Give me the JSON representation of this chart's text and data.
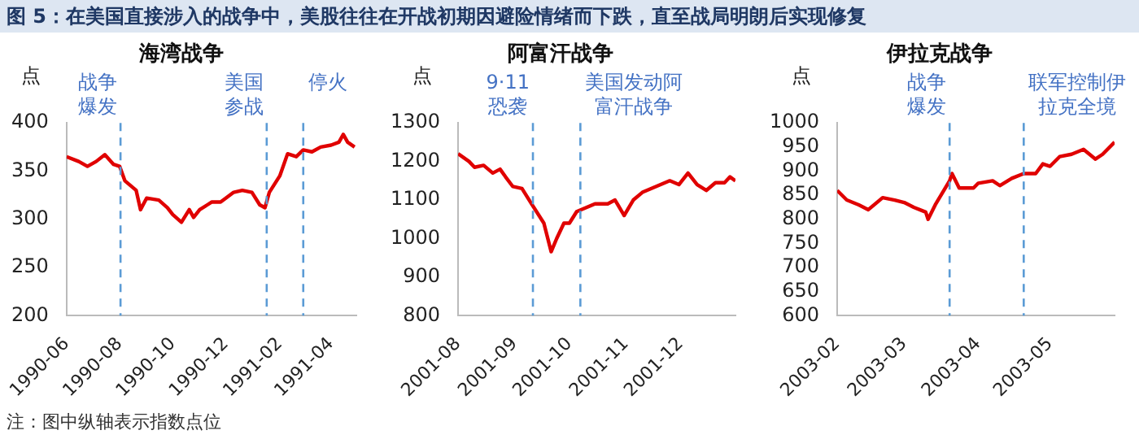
{
  "chart_data": [
    {
      "type": "line",
      "subtitle": "图 5：在美国直接涉入的战争中，美股往往在开战初期因避险情绪而下跌，直至战局明朗后实现修复",
      "title": "海湾战争",
      "ylabel": "点",
      "annotations": [
        "注：图中纵轴表示指数点位"
      ],
      "x": [
        "1990-06-01",
        "1990-06-15",
        "1990-06-25",
        "1990-07-05",
        "1990-07-15",
        "1990-07-25",
        "1990-08-01",
        "1990-08-07",
        "1990-08-20",
        "1990-08-25",
        "1990-09-01",
        "1990-09-15",
        "1990-09-25",
        "1990-10-01",
        "1990-10-11",
        "1990-10-20",
        "1990-10-25",
        "1990-11-01",
        "1990-11-15",
        "1990-11-25",
        "1990-12-01",
        "1990-12-10",
        "1990-12-20",
        "1990-12-31",
        "1991-01-09",
        "1991-01-15",
        "1991-01-20",
        "1991-02-01",
        "1991-02-10",
        "1991-02-20",
        "1991-02-28",
        "1991-03-10",
        "1991-03-20",
        "1991-04-01",
        "1991-04-10",
        "1991-04-15",
        "1991-04-20",
        "1991-04-28"
      ],
      "series": [
        {
          "color": "#e00000",
          "values": [
            365,
            360,
            355,
            360,
            367,
            357,
            355,
            340,
            330,
            310,
            322,
            320,
            312,
            305,
            297,
            310,
            302,
            310,
            318,
            318,
            322,
            328,
            330,
            328,
            315,
            312,
            328,
            345,
            368,
            365,
            372,
            370,
            375,
            377,
            380,
            388,
            380,
            375
          ]
        }
      ],
      "xlim": [
        "1990-06-01",
        "1991-04-30"
      ],
      "xticks": [
        "1990-06",
        "1990-08",
        "1990-10",
        "1990-12",
        "1991-02",
        "1991-04"
      ],
      "ylim": [
        200,
        400
      ],
      "yticks": [
        200,
        250,
        300,
        350,
        400
      ],
      "grid": false,
      "legend": false,
      "marker": "none",
      "line_style": "solid",
      "ref_lines": [
        {
          "axis": "x",
          "value": "1990-08-02",
          "label": "战争爆发",
          "color": "#5b9bd5",
          "line_style": "dashed"
        },
        {
          "axis": "x",
          "value": "1991-01-17",
          "label": "美国参战",
          "color": "#5b9bd5",
          "line_style": "dashed"
        },
        {
          "axis": "x",
          "value": "1991-02-28",
          "label": "停火",
          "color": "#5b9bd5",
          "line_style": "dashed"
        }
      ]
    },
    {
      "type": "line",
      "title": "阿富汗战争",
      "ylabel": "点",
      "x": [
        "2001-08-01",
        "2001-08-07",
        "2001-08-10",
        "2001-08-15",
        "2001-08-20",
        "2001-08-24",
        "2001-08-27",
        "2001-08-31",
        "2001-09-05",
        "2001-09-10",
        "2001-09-17",
        "2001-09-21",
        "2001-09-24",
        "2001-09-28",
        "2001-10-01",
        "2001-10-05",
        "2001-10-10",
        "2001-10-15",
        "2001-10-22",
        "2001-10-26",
        "2001-10-31",
        "2001-11-05",
        "2001-11-10",
        "2001-11-20",
        "2001-11-25",
        "2001-11-30",
        "2001-12-05",
        "2001-12-10",
        "2001-12-15",
        "2001-12-20",
        "2001-12-25",
        "2001-12-28",
        "2001-12-31"
      ],
      "series": [
        {
          "color": "#e00000",
          "values": [
            1220,
            1200,
            1185,
            1190,
            1170,
            1180,
            1160,
            1135,
            1130,
            1092,
            1040,
            966,
            1000,
            1040,
            1040,
            1070,
            1080,
            1090,
            1090,
            1100,
            1060,
            1100,
            1120,
            1140,
            1150,
            1140,
            1170,
            1140,
            1125,
            1145,
            1145,
            1160,
            1150
          ]
        }
      ],
      "xlim": [
        "2001-08-01",
        "2001-12-31"
      ],
      "xticks": [
        "2001-08",
        "2001-09",
        "2001-10",
        "2001-11",
        "2001-12"
      ],
      "ylim": [
        800,
        1300
      ],
      "yticks": [
        800,
        900,
        1000,
        1100,
        1200,
        1300
      ],
      "grid": false,
      "legend": false,
      "marker": "none",
      "line_style": "solid",
      "ref_lines": [
        {
          "axis": "x",
          "value": "2001-09-11",
          "label": "9·11恐袭",
          "color": "#5b9bd5",
          "line_style": "dashed"
        },
        {
          "axis": "x",
          "value": "2001-10-07",
          "label": "美国发动阿富汗战争",
          "color": "#5b9bd5",
          "line_style": "dashed"
        }
      ]
    },
    {
      "type": "line",
      "title": "伊拉克战争",
      "ylabel": "点",
      "x": [
        "2003-02-01",
        "2003-02-05",
        "2003-02-10",
        "2003-02-14",
        "2003-02-20",
        "2003-02-25",
        "2003-03-01",
        "2003-03-05",
        "2003-03-10",
        "2003-03-11",
        "2003-03-14",
        "2003-03-20",
        "2003-03-21",
        "2003-03-24",
        "2003-03-30",
        "2003-04-01",
        "2003-04-07",
        "2003-04-10",
        "2003-04-15",
        "2003-04-20",
        "2003-04-25",
        "2003-04-28",
        "2003-05-01",
        "2003-05-05",
        "2003-05-10",
        "2003-05-15",
        "2003-05-20",
        "2003-05-23",
        "2003-05-28"
      ],
      "series": [
        {
          "color": "#e00000",
          "values": [
            860,
            840,
            830,
            820,
            845,
            840,
            835,
            825,
            815,
            800,
            830,
            880,
            895,
            865,
            865,
            875,
            880,
            870,
            885,
            895,
            895,
            915,
            910,
            930,
            935,
            945,
            925,
            935,
            960
          ]
        }
      ],
      "xlim": [
        "2003-02-01",
        "2003-05-28"
      ],
      "xticks": [
        "2003-02",
        "2003-03",
        "2003-04",
        "2003-05"
      ],
      "ylim": [
        600,
        1000
      ],
      "yticks": [
        600,
        650,
        700,
        750,
        800,
        850,
        900,
        950,
        1000
      ],
      "grid": false,
      "legend": false,
      "marker": "none",
      "line_style": "solid",
      "ref_lines": [
        {
          "axis": "x",
          "value": "2003-03-20",
          "label": "战争爆发",
          "color": "#5b9bd5",
          "line_style": "dashed"
        },
        {
          "axis": "x",
          "value": "2003-04-20",
          "label": "联军控制伊拉克全境",
          "color": "#5b9bd5",
          "line_style": "dashed"
        }
      ]
    }
  ]
}
